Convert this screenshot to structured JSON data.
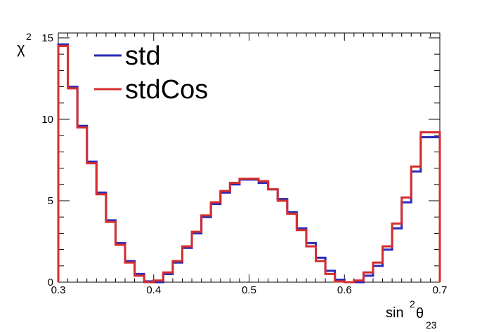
{
  "chart_data": {
    "type": "line",
    "step": true,
    "xlabel": {
      "base": "sin",
      "sup": "2",
      "greek": "θ",
      "sub": "23"
    },
    "ylabel": {
      "base": "χ",
      "sup": "2"
    },
    "xlim": [
      0.3,
      0.7
    ],
    "ylim": [
      0,
      15.3
    ],
    "xticks": [
      0.3,
      0.4,
      0.5,
      0.6,
      0.7
    ],
    "xtick_labels": [
      "0.3",
      "0.4",
      "0.5",
      "0.6",
      "0.7"
    ],
    "yticks": [
      0,
      5,
      10,
      15
    ],
    "ytick_labels": [
      "0",
      "5",
      "10",
      "15"
    ],
    "bin_edges": [
      0.3,
      0.31,
      0.32,
      0.33,
      0.34,
      0.35,
      0.36,
      0.37,
      0.38,
      0.39,
      0.4,
      0.41,
      0.42,
      0.43,
      0.44,
      0.45,
      0.46,
      0.47,
      0.48,
      0.49,
      0.5,
      0.51,
      0.52,
      0.53,
      0.54,
      0.55,
      0.56,
      0.57,
      0.58,
      0.59,
      0.6,
      0.61,
      0.62,
      0.63,
      0.64,
      0.65,
      0.66,
      0.67,
      0.68,
      0.69,
      0.7
    ],
    "series": [
      {
        "name": "std",
        "color": "#2a2ab8",
        "values": [
          14.6,
          12.0,
          9.6,
          7.4,
          5.5,
          3.8,
          2.4,
          1.3,
          0.5,
          0.05,
          0.0,
          0.5,
          1.2,
          2.1,
          3.0,
          4.0,
          4.8,
          5.5,
          6.0,
          6.3,
          6.3,
          6.1,
          5.7,
          5.1,
          4.3,
          3.3,
          2.4,
          1.5,
          0.7,
          0.15,
          0.0,
          0.0,
          0.4,
          1.0,
          2.0,
          3.3,
          4.9,
          6.8,
          8.9,
          8.9
        ]
      },
      {
        "name": "stdCos",
        "color": "#d62e2e",
        "values": [
          14.5,
          11.9,
          9.5,
          7.3,
          5.4,
          3.7,
          2.3,
          1.2,
          0.4,
          0.0,
          0.1,
          0.6,
          1.3,
          2.2,
          3.1,
          4.1,
          4.9,
          5.6,
          6.1,
          6.35,
          6.35,
          6.2,
          5.7,
          5.0,
          4.2,
          3.2,
          2.2,
          1.3,
          0.5,
          0.05,
          0.0,
          0.1,
          0.6,
          1.2,
          2.2,
          3.6,
          5.2,
          7.1,
          9.2,
          9.2
        ]
      }
    ],
    "legend": {
      "placement": "top-left"
    }
  }
}
